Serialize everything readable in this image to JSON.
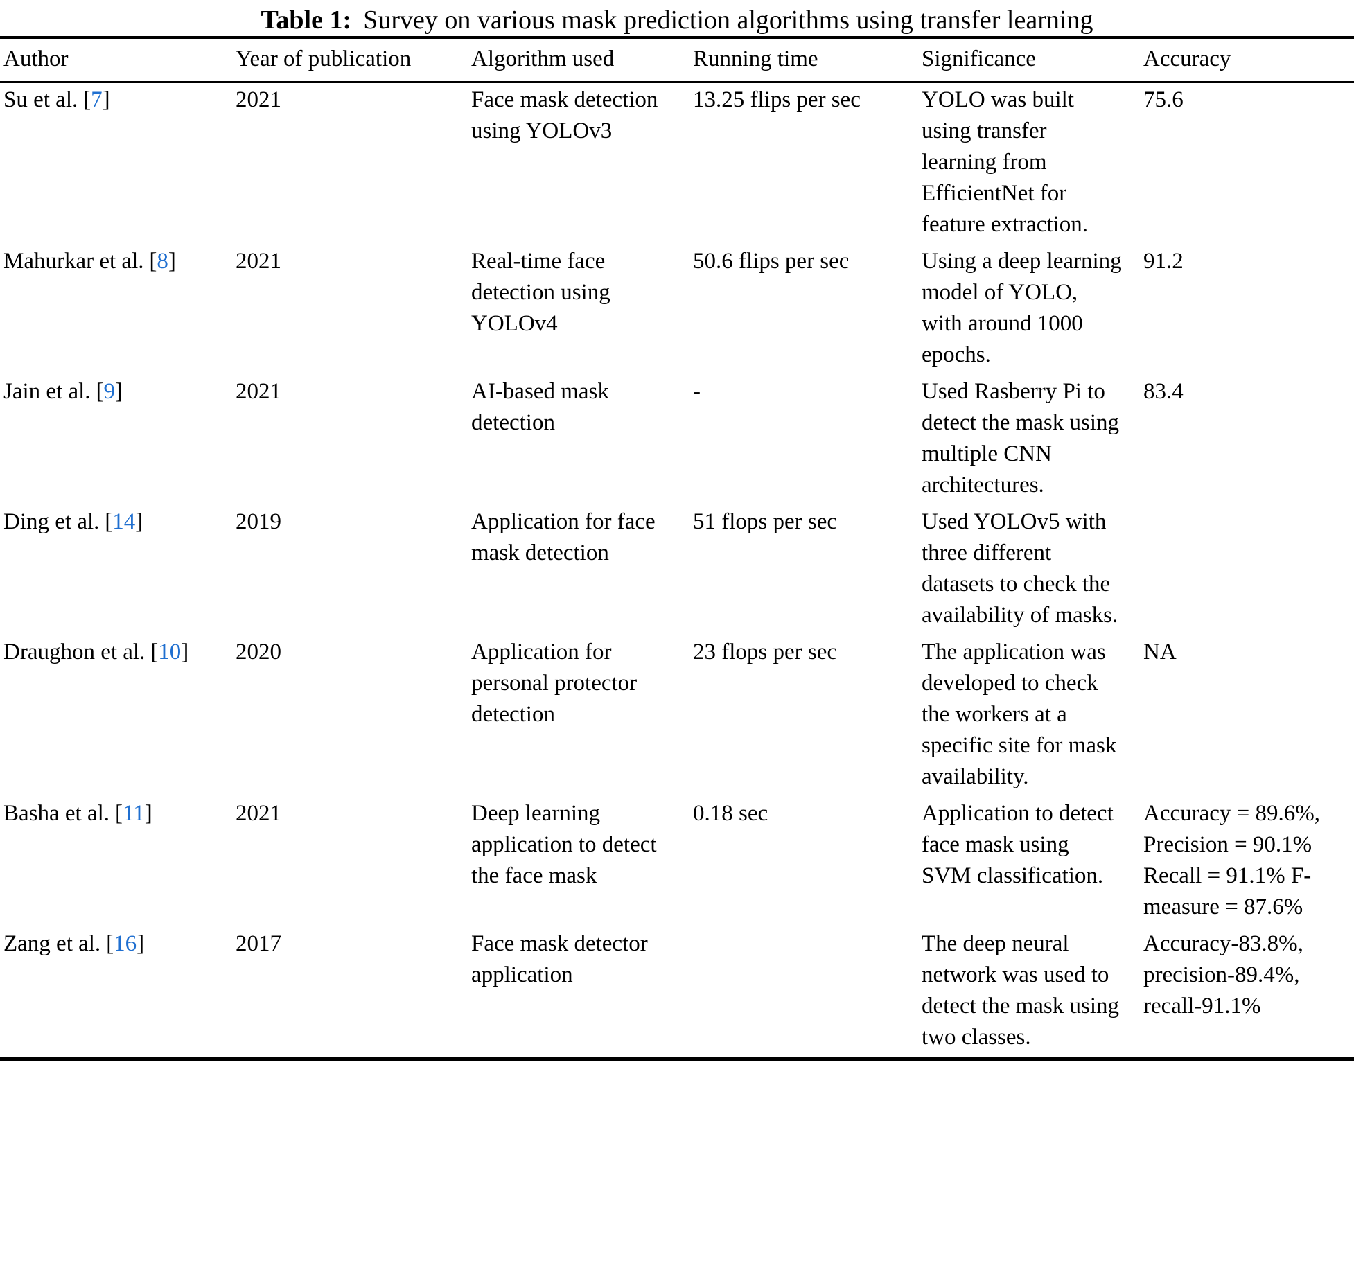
{
  "table": {
    "title_label": "Table 1:",
    "title_text": "Survey on various mask prediction algorithms using transfer learning",
    "citation_color": "#1f6fd0",
    "citation_brackets": {
      "open": "[",
      "close": "]"
    },
    "columns": [
      "Author",
      "Year of publication",
      "Algorithm used",
      "Running time",
      "Significance",
      "Accuracy"
    ],
    "rows": [
      {
        "author": "Su et al.",
        "ref": "7",
        "year": "2021",
        "algorithm": "Face mask detection using YOLOv3",
        "running_time": "13.25 flips per sec",
        "significance": "YOLO was built using transfer learning from EfficientNet for feature extraction.",
        "accuracy": "75.6"
      },
      {
        "author": "Mahurkar et al.",
        "ref": "8",
        "year": "2021",
        "algorithm": "Real-time face detection using YOLOv4",
        "running_time": "50.6 flips per sec",
        "significance": "Using a deep learning model of YOLO, with around 1000 epochs.",
        "accuracy": "91.2"
      },
      {
        "author": "Jain et al.",
        "ref": "9",
        "year": "2021",
        "algorithm": "AI-based mask detection",
        "running_time": "-",
        "significance": "Used Rasberry Pi to detect the mask using multiple CNN architectures.",
        "accuracy": "83.4"
      },
      {
        "author": "Ding et al.",
        "ref": "14",
        "year": "2019",
        "algorithm": "Application for face mask detection",
        "running_time": "51 flops per sec",
        "significance": "Used YOLOv5 with three different datasets to check the availability of masks.",
        "accuracy": ""
      },
      {
        "author": "Draughon et al.",
        "ref": "10",
        "year": "2020",
        "algorithm": "Application for personal protector detection",
        "running_time": "23 flops per sec",
        "significance": "The application was developed to check the workers at a specific site for mask availability.",
        "accuracy": "NA"
      },
      {
        "author": "Basha et al.",
        "ref": "11",
        "year": "2021",
        "algorithm": "Deep learning application to detect the face mask",
        "running_time": "0.18 sec",
        "significance": "Application to detect face mask using SVM classification.",
        "accuracy": "Accuracy = 89.6%, Precision = 90.1% Recall = 91.1% F-measure = 87.6%"
      },
      {
        "author": "Zang et al.",
        "ref": "16",
        "year": "2017",
        "algorithm": "Face mask detector application",
        "running_time": "",
        "significance": "The deep neural network was used to detect the mask using two classes.",
        "accuracy": "Accuracy-83.8%, precision-89.4%, recall-91.1%"
      }
    ]
  }
}
